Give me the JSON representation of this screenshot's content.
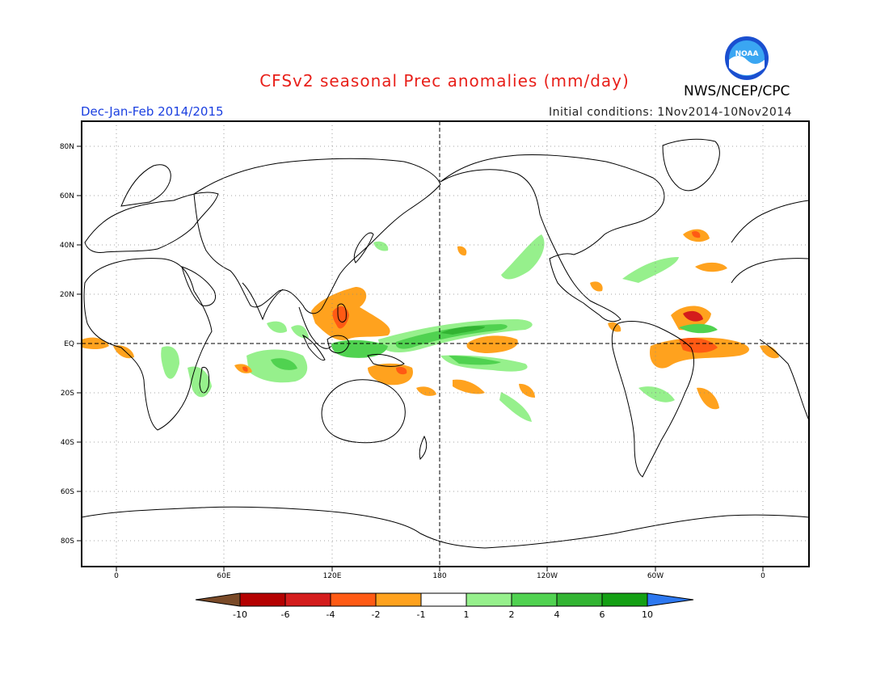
{
  "header": {
    "title": "CFSv2 seasonal Prec anomalies (mm/day)",
    "agency": "NWS/NCEP/CPC",
    "logo_text": "NOAA",
    "season": "Dec-Jan-Feb 2014/2015",
    "initial_conditions": "Initial conditions: 1Nov2014-10Nov2014"
  },
  "map": {
    "lat_labels": [
      "80N",
      "60N",
      "40N",
      "20N",
      "EQ",
      "20S",
      "40S",
      "60S",
      "80S"
    ],
    "lon_labels": [
      "0",
      "60E",
      "120E",
      "180",
      "120W",
      "60W",
      "0"
    ],
    "grid": "dotted",
    "reference_lines": [
      "EQ",
      "180"
    ]
  },
  "colorbar": {
    "labels": [
      "-10",
      "-6",
      "-4",
      "-2",
      "-1",
      "1",
      "2",
      "4",
      "6",
      "10"
    ],
    "colors": [
      "#7a4a28",
      "#b40000",
      "#d41c1c",
      "#ff5a14",
      "#ffa21e",
      "#ffffff",
      "#96f08c",
      "#50d250",
      "#32b432",
      "#14a014",
      "#2d78f0"
    ]
  },
  "colors": {
    "title": "#e8201a",
    "season": "#1a3fe0"
  }
}
